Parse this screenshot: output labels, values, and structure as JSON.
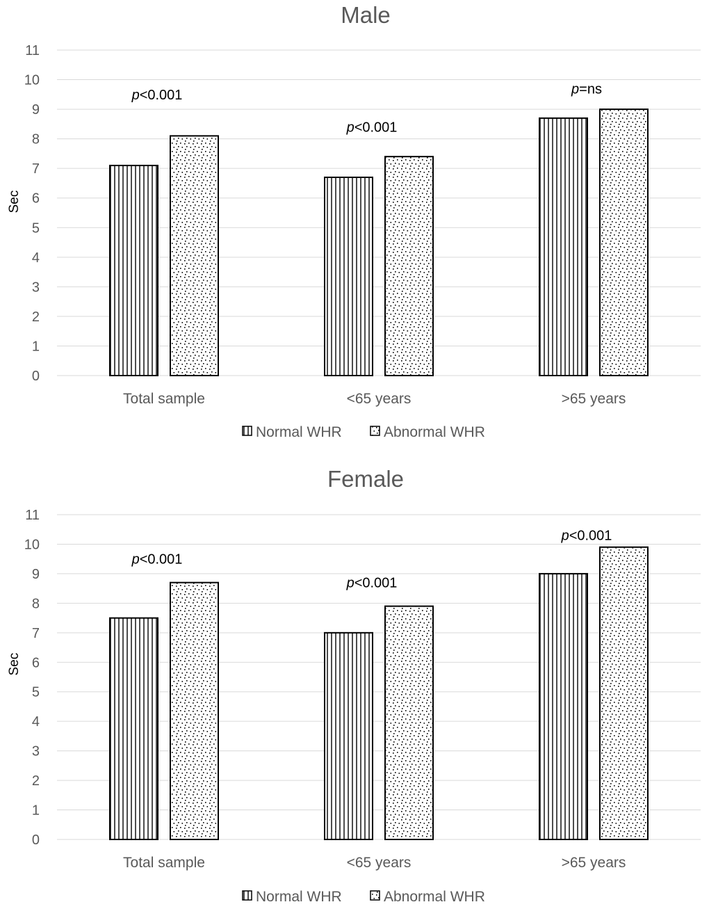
{
  "chart_data": [
    {
      "type": "bar",
      "title": "Male",
      "ylabel": "Sec",
      "xlabel": "",
      "ylim": [
        0,
        11
      ],
      "yticks": [
        "0",
        "1",
        "2",
        "3",
        "4",
        "5",
        "6",
        "7",
        "8",
        "9",
        "10",
        "11"
      ],
      "grid": true,
      "categories": [
        "Total sample",
        "<65 years",
        ">65 years"
      ],
      "series": [
        {
          "name": "Normal WHR",
          "pattern": "vertical-lines",
          "values": [
            7.1,
            6.7,
            8.7
          ]
        },
        {
          "name": "Abnormal WHR",
          "pattern": "dots",
          "values": [
            8.1,
            7.4,
            9.0
          ]
        }
      ],
      "annotations": [
        {
          "italic": "p",
          "rest": "<0.001",
          "category": "Total sample",
          "y": 9.5
        },
        {
          "italic": "p",
          "rest": "<0.001",
          "category": "<65 years",
          "y": 8.4
        },
        {
          "italic": "p",
          "rest": "=ns",
          "category": ">65 years",
          "y": 9.7
        }
      ],
      "legend_position": "bottom"
    },
    {
      "type": "bar",
      "title": "Female",
      "ylabel": "Sec",
      "xlabel": "",
      "ylim": [
        0,
        11
      ],
      "yticks": [
        "0",
        "1",
        "2",
        "3",
        "4",
        "5",
        "6",
        "7",
        "8",
        "9",
        "10",
        "11"
      ],
      "grid": true,
      "categories": [
        "Total sample",
        "<65 years",
        ">65 years"
      ],
      "series": [
        {
          "name": "Normal WHR",
          "pattern": "vertical-lines",
          "values": [
            7.5,
            7.0,
            9.0
          ]
        },
        {
          "name": "Abnormal WHR",
          "pattern": "dots",
          "values": [
            8.7,
            7.9,
            9.9
          ]
        }
      ],
      "annotations": [
        {
          "italic": "p",
          "rest": "<0.001",
          "category": "Total sample",
          "y": 9.5
        },
        {
          "italic": "p",
          "rest": "<0.001",
          "category": "<65 years",
          "y": 8.7
        },
        {
          "italic": "p",
          "rest": "<0.001",
          "category": ">65 years",
          "y": 10.3
        }
      ],
      "legend_position": "bottom"
    }
  ]
}
